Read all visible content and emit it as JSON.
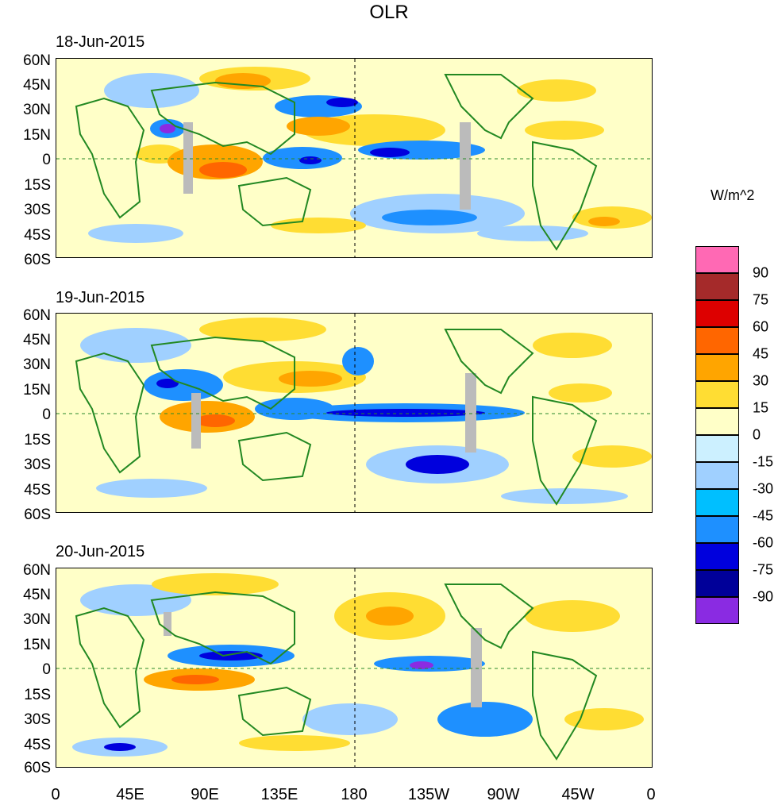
{
  "title": "OLR",
  "units": "W/m^2",
  "panels": [
    {
      "date": "18-Jun-2015"
    },
    {
      "date": "19-Jun-2015"
    },
    {
      "date": "20-Jun-2015"
    }
  ],
  "lat_labels": [
    "60N",
    "45N",
    "30N",
    "15N",
    "0",
    "15S",
    "30S",
    "45S",
    "60S"
  ],
  "lon_labels": [
    "0",
    "45E",
    "90E",
    "135E",
    "180",
    "135W",
    "90W",
    "45W",
    "0"
  ],
  "colorbar": {
    "labels": [
      "90",
      "75",
      "60",
      "45",
      "30",
      "15",
      "0",
      "-15",
      "-30",
      "-45",
      "-60",
      "-75",
      "-90"
    ],
    "colors": [
      "#ff69b4",
      "#a52a2a",
      "#dd0000",
      "#ff6600",
      "#ffa500",
      "#ffdd33",
      "#ffffc8",
      "#ccf0ff",
      "#a0d0ff",
      "#00bfff",
      "#1e90ff",
      "#0000dd",
      "#000099",
      "#8a2be2"
    ]
  }
}
